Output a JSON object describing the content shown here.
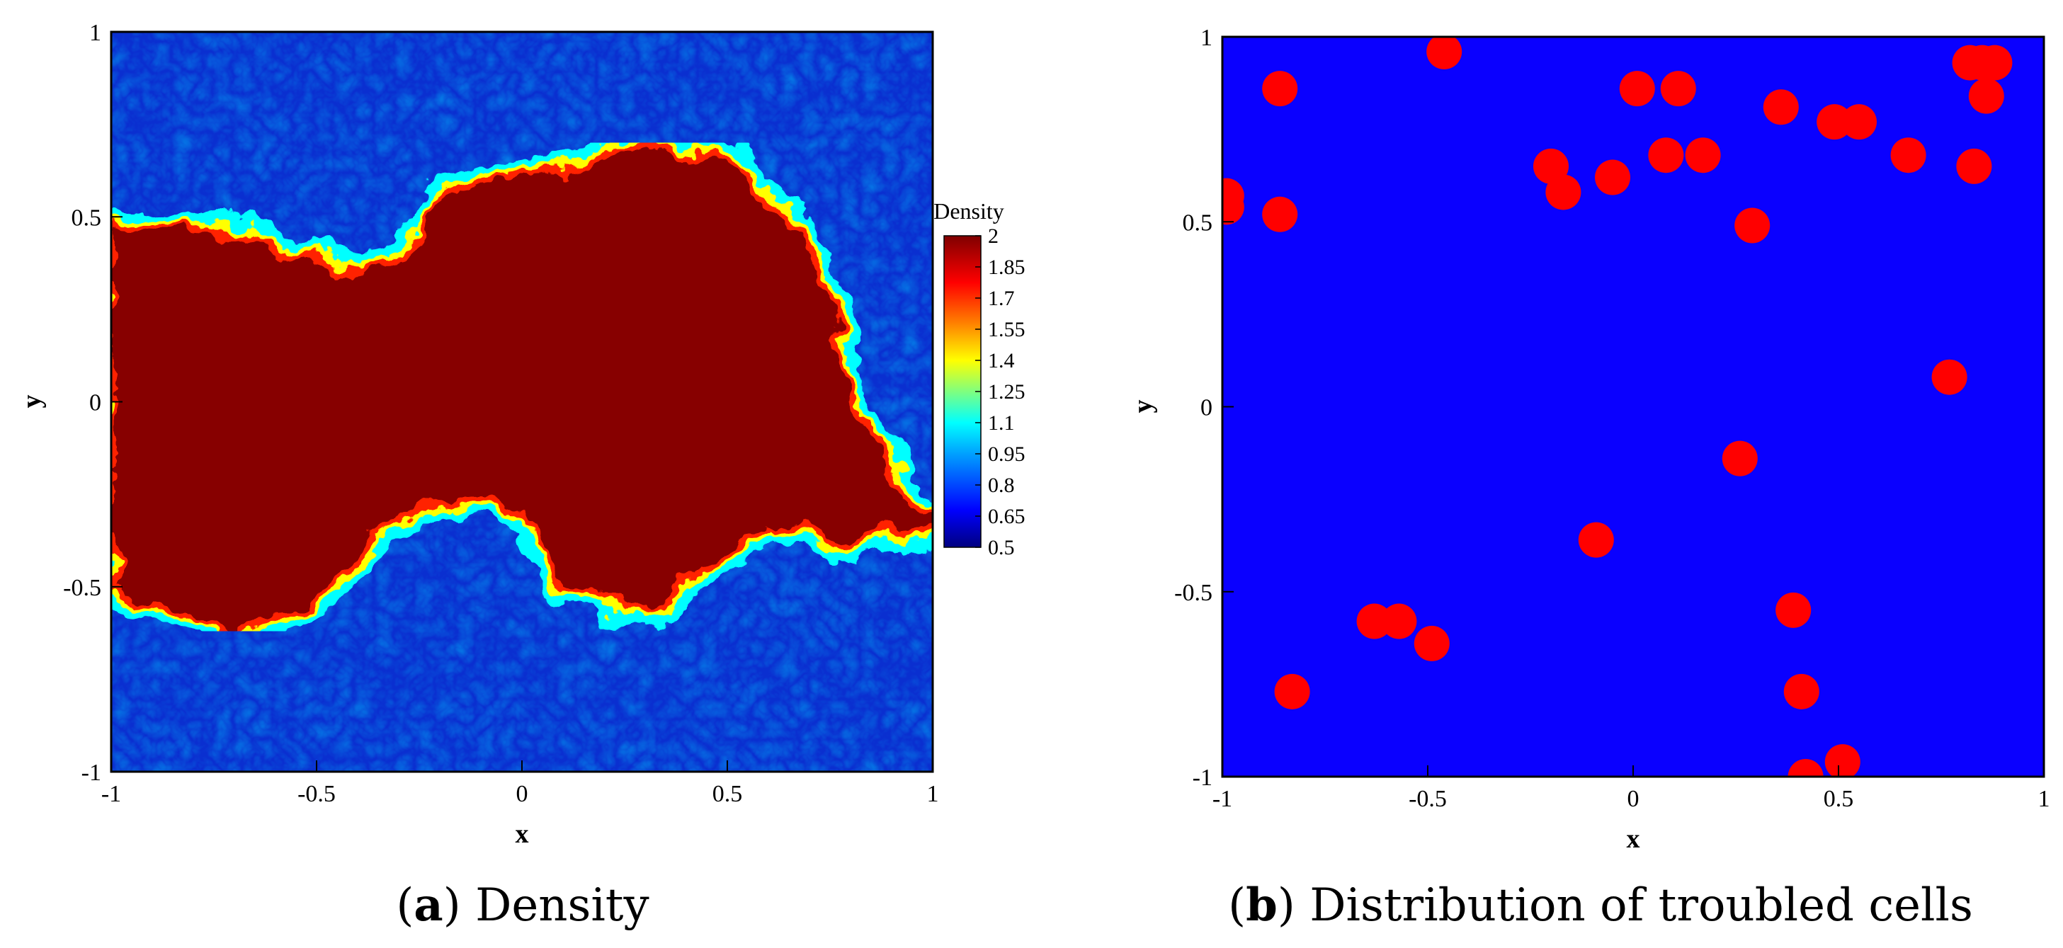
{
  "captions": {
    "a": {
      "letter": "a",
      "text": "Density"
    },
    "b": {
      "letter": "b",
      "text": "Distribution of troubled cells"
    }
  },
  "chart_data": [
    {
      "type": "heatmap",
      "panel": "a",
      "xlabel": "x",
      "ylabel": "y",
      "xlim": [
        -1,
        1
      ],
      "ylim": [
        -1,
        1
      ],
      "xticks": [
        "-1",
        "-0.5",
        "0",
        "0.5",
        "1"
      ],
      "yticks": [
        "-1",
        "-0.5",
        "0",
        "0.5",
        "1"
      ],
      "colorbar": {
        "title": "Density",
        "range": [
          0.5,
          2
        ],
        "labels": [
          "2",
          "1.85",
          "1.7",
          "1.55",
          "1.4",
          "1.25",
          "1.1",
          "0.95",
          "0.8",
          "0.65",
          "0.5"
        ],
        "colormap": [
          "#00007f",
          "#0000ff",
          "#00a0ff",
          "#00ffff",
          "#7fff7f",
          "#ffff00",
          "#ff8000",
          "#ff0000",
          "#7f0000"
        ]
      },
      "field": {
        "heavy_color": "#870000",
        "light_color": "#0a2fd0",
        "interface_colors": [
          "#00ffff",
          "#ffff00",
          "#ff2000"
        ],
        "heavy_band_upper": [
          [
            -1,
            0.48
          ],
          [
            -0.8,
            0.47
          ],
          [
            -0.6,
            0.43
          ],
          [
            -0.45,
            0.35
          ],
          [
            -0.3,
            0.38
          ],
          [
            -0.2,
            0.55
          ],
          [
            -0.1,
            0.6
          ],
          [
            0.1,
            0.62
          ],
          [
            0.3,
            0.7
          ],
          [
            0.5,
            0.66
          ],
          [
            0.65,
            0.5
          ],
          [
            0.75,
            0.3
          ],
          [
            0.8,
            0.0
          ],
          [
            1,
            -0.35
          ]
        ],
        "heavy_band_lower": [
          [
            1,
            -0.35
          ],
          [
            0.8,
            -0.38
          ],
          [
            0.6,
            -0.33
          ],
          [
            0.45,
            -0.45
          ],
          [
            0.3,
            -0.58
          ],
          [
            0.1,
            -0.5
          ],
          [
            0.0,
            -0.3
          ],
          [
            -0.2,
            -0.25
          ],
          [
            -0.35,
            -0.35
          ],
          [
            -0.5,
            -0.55
          ],
          [
            -0.7,
            -0.62
          ],
          [
            -1,
            -0.5
          ]
        ]
      }
    },
    {
      "type": "scatter",
      "panel": "b",
      "xlabel": "x",
      "ylabel": "y",
      "xlim": [
        -1,
        1
      ],
      "ylim": [
        -1,
        1
      ],
      "xticks": [
        "-1",
        "-0.5",
        "0",
        "0.5",
        "1"
      ],
      "yticks": [
        "-1",
        "-0.5",
        "0",
        "0.5",
        "1"
      ],
      "background_color": "#0a00ff",
      "marker_color": "#ff0000",
      "points": [
        {
          "x": -0.46,
          "y": 0.96
        },
        {
          "x": -0.86,
          "y": 0.86
        },
        {
          "x": 0.01,
          "y": 0.86
        },
        {
          "x": 0.11,
          "y": 0.86
        },
        {
          "x": 0.85,
          "y": 0.93
        },
        {
          "x": 0.82,
          "y": 0.93
        },
        {
          "x": 0.88,
          "y": 0.93
        },
        {
          "x": 0.86,
          "y": 0.84
        },
        {
          "x": 0.36,
          "y": 0.81
        },
        {
          "x": 0.49,
          "y": 0.77
        },
        {
          "x": 0.55,
          "y": 0.77
        },
        {
          "x": 0.67,
          "y": 0.68
        },
        {
          "x": 0.83,
          "y": 0.65
        },
        {
          "x": -0.2,
          "y": 0.65
        },
        {
          "x": -0.17,
          "y": 0.58
        },
        {
          "x": -0.05,
          "y": 0.62
        },
        {
          "x": 0.08,
          "y": 0.68
        },
        {
          "x": 0.17,
          "y": 0.68
        },
        {
          "x": 0.29,
          "y": 0.49
        },
        {
          "x": -0.86,
          "y": 0.52
        },
        {
          "x": -0.99,
          "y": 0.57
        },
        {
          "x": -0.99,
          "y": 0.54
        },
        {
          "x": 0.77,
          "y": 0.08
        },
        {
          "x": 0.26,
          "y": -0.14
        },
        {
          "x": -0.09,
          "y": -0.36
        },
        {
          "x": 0.39,
          "y": -0.55
        },
        {
          "x": -0.63,
          "y": -0.58
        },
        {
          "x": -0.57,
          "y": -0.58
        },
        {
          "x": -0.49,
          "y": -0.64
        },
        {
          "x": -0.83,
          "y": -0.77
        },
        {
          "x": 0.41,
          "y": -0.77
        },
        {
          "x": 0.51,
          "y": -0.96
        },
        {
          "x": 0.42,
          "y": -1.0
        }
      ]
    }
  ]
}
